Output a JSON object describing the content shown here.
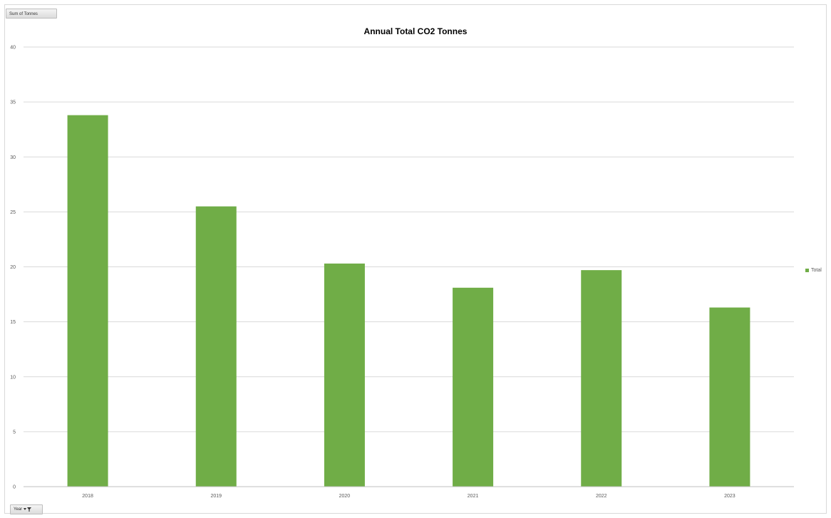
{
  "field_buttons": {
    "values_field": "Sum of Tonnes",
    "axis_field": "Year",
    "axis_field_icon": "filter-dropdown-icon"
  },
  "colors": {
    "bar": "#70ad47",
    "gridline": "#d9d9d9",
    "axis_text": "#595959"
  },
  "chart_data": {
    "type": "bar",
    "title": "Annual Total CO2 Tonnes",
    "xlabel": "",
    "ylabel": "",
    "categories": [
      "2018",
      "2019",
      "2020",
      "2021",
      "2022",
      "2023"
    ],
    "series": [
      {
        "name": "Total",
        "values": [
          33.8,
          25.5,
          20.3,
          18.1,
          19.7,
          16.3
        ]
      }
    ],
    "ylim": [
      0,
      40
    ],
    "yticks": [
      "0",
      "5",
      "10",
      "15",
      "20",
      "25",
      "30",
      "35",
      "40"
    ],
    "grid": true,
    "legend": "right"
  }
}
